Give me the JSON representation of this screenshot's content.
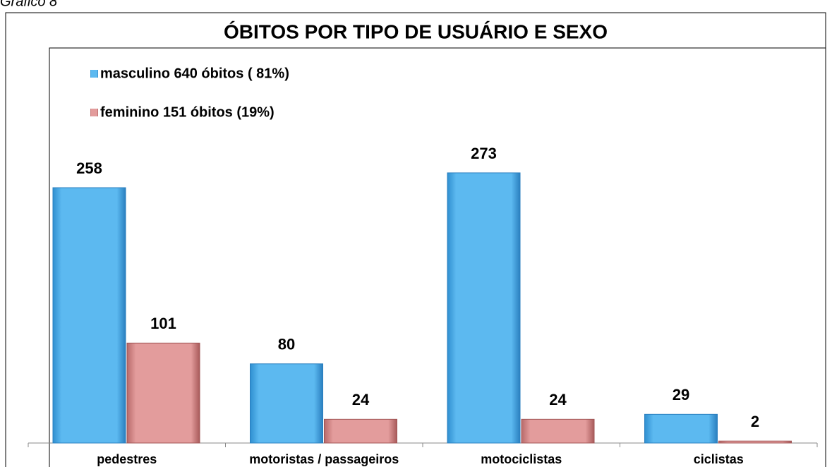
{
  "chart_data": {
    "type": "bar",
    "caption": "Gráfico 8",
    "title": "ÓBITOS POR TIPO DE USUÁRIO E SEXO",
    "categories": [
      "pedestres",
      "motoristas / passageiros",
      "motociclistas",
      "ciclistas"
    ],
    "series": [
      {
        "name": "masculino 640 óbitos ( 81%)",
        "color": "#5cb9f0",
        "values": [
          258,
          80,
          273,
          29
        ]
      },
      {
        "name": "feminino 151 óbitos (19%)",
        "color": "#e39c9c",
        "values": [
          101,
          24,
          24,
          2
        ]
      }
    ],
    "legend": "top-left"
  }
}
